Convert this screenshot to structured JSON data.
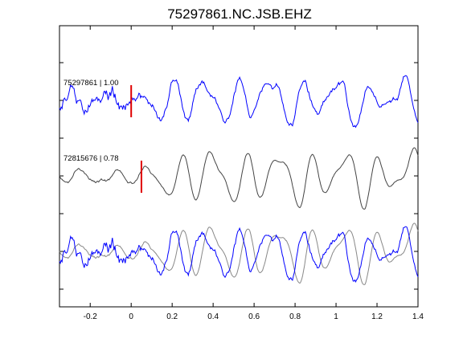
{
  "chart_data": {
    "type": "line",
    "title": "75297861.NC.JSB.EHZ",
    "xlim": [
      -0.35,
      1.4
    ],
    "xticks": [
      "-0.2",
      "0",
      "0.2",
      "0.4",
      "0.6",
      "0.8",
      "1",
      "1.2",
      "1.4"
    ],
    "xtick_values": [
      -0.2,
      0,
      0.2,
      0.4,
      0.6,
      0.8,
      1.0,
      1.2,
      1.4
    ],
    "grid": false,
    "colors": {
      "blue": "#0000ff",
      "gray": "#444444",
      "overlay_gray": "#888888",
      "pick": "#e00000",
      "axes": "#000000"
    },
    "traces": [
      {
        "label": "75297861 | 1.00",
        "color": "blue",
        "pick_time": 0.0
      },
      {
        "label": "72815676 | 0.78",
        "color": "gray",
        "pick_time": 0.05
      }
    ],
    "overlay": {
      "series": [
        "gray",
        "blue"
      ]
    }
  }
}
